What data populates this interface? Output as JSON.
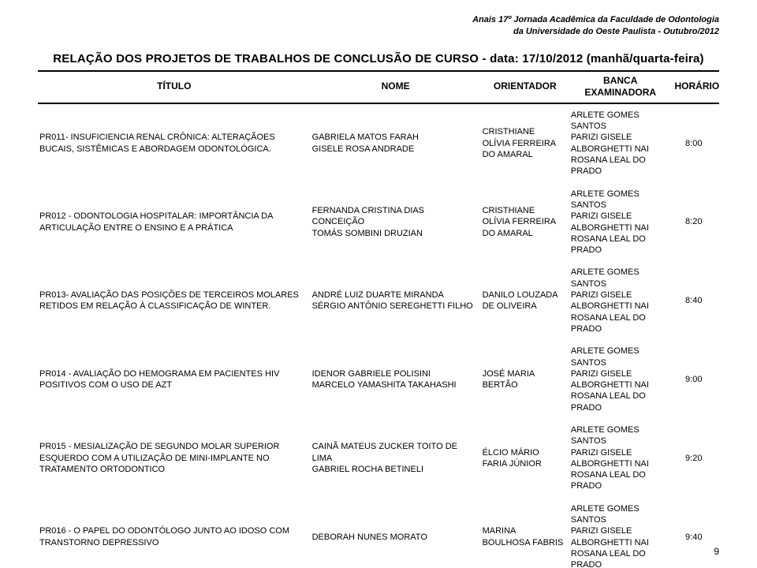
{
  "running_head": {
    "line1": "Anais 17º Jornada Acadêmica da Faculdade de Odontologia",
    "line2": "da Universidade do Oeste Paulista - Outubro/2012"
  },
  "main_title": "RELAÇÃO DOS PROJETOS DE TRABALHOS DE CONCLUSÃO DE CURSO - data: 17/10/2012 (manhã/quarta-feira)",
  "columns": {
    "title": "TÍTULO",
    "name": "NOME",
    "advisor": "ORIENTADOR",
    "board": "BANCA EXAMINADORA",
    "time": "HORÁRIO"
  },
  "rows": [
    {
      "title": "PR011- INSUFICIENCIA RENAL CRÔNICA: ALTERAÇÃOES BUCAIS, SISTÊMICAS E ABORDAGEM ODONTOLÓGICA.",
      "name": "GABRIELA MATOS FARAH\nGISELE ROSA ANDRADE",
      "advisor": "CRISTHIANE OLÍVIA FERREIRA DO AMARAL",
      "board": "ARLETE GOMES SANTOS\nPARIZI GISELE ALBORGHETTI NAI\nROSANA LEAL DO PRADO",
      "time": "8:00"
    },
    {
      "title": "PR012 - ODONTOLOGIA HOSPITALAR: IMPORTÂNCIA DA ARTICULAÇÃO ENTRE O ENSINO E A PRÁTICA",
      "name": "FERNANDA CRISTINA DIAS CONCEIÇÃO\nTOMÁS SOMBINI DRUZIAN",
      "advisor": "CRISTHIANE OLÍVIA FERREIRA DO AMARAL",
      "board": "ARLETE GOMES SANTOS\nPARIZI GISELE ALBORGHETTI NAI\nROSANA LEAL DO PRADO",
      "time": "8:20"
    },
    {
      "title": "PR013- AVALIAÇÃO DAS POSIÇÕES DE TERCEIROS MOLARES RETIDOS EM RELAÇÃO À CLASSIFICAÇÃO DE WINTER.",
      "name": "ANDRÉ LUIZ DUARTE MIRANDA\nSÉRGIO ANTÔNIO SEREGHETTI FILHO",
      "advisor": "DANILO LOUZADA DE OLIVEIRA",
      "board": "ARLETE GOMES SANTOS\nPARIZI GISELE ALBORGHETTI NAI\nROSANA LEAL DO PRADO",
      "time": "8:40"
    },
    {
      "title": "PR014 - AVALIAÇÃO DO HEMOGRAMA EM PACIENTES HIV POSITIVOS COM O USO DE AZT",
      "name": "IDENOR GABRIELE POLISINI\nMARCELO YAMASHITA TAKAHASHI",
      "advisor": "JOSÉ MARIA BERTÃO",
      "board": "ARLETE GOMES SANTOS\nPARIZI GISELE ALBORGHETTI NAI\nROSANA LEAL DO PRADO",
      "time": "9:00"
    },
    {
      "title": "PR015 - MESIALIZAÇÃO DE SEGUNDO MOLAR SUPERIOR ESQUERDO COM A UTILIZAÇÃO DE MINI-IMPLANTE NO TRATAMENTO ORTODONTICO",
      "name": "CAINÃ MATEUS ZUCKER TOITO DE LIMA\nGABRIEL ROCHA BETINELI",
      "advisor": "ÉLCIO MÁRIO FARIA JÚNIOR",
      "board": "ARLETE GOMES SANTOS\nPARIZI GISELE ALBORGHETTI NAI\nROSANA LEAL DO PRADO",
      "time": "9:20"
    },
    {
      "title": "PR016 - O PAPEL DO ODONTÓLOGO JUNTO AO IDOSO COM TRANSTORNO DEPRESSIVO",
      "name": "DEBORAH NUNES MORATO",
      "advisor": "MARINA BOULHOSA FABRIS",
      "board": "ARLETE GOMES SANTOS\nPARIZI GISELE ALBORGHETTI NAI\nROSANA LEAL DO PRADO",
      "time": "9:40"
    }
  ],
  "page_number": "9"
}
